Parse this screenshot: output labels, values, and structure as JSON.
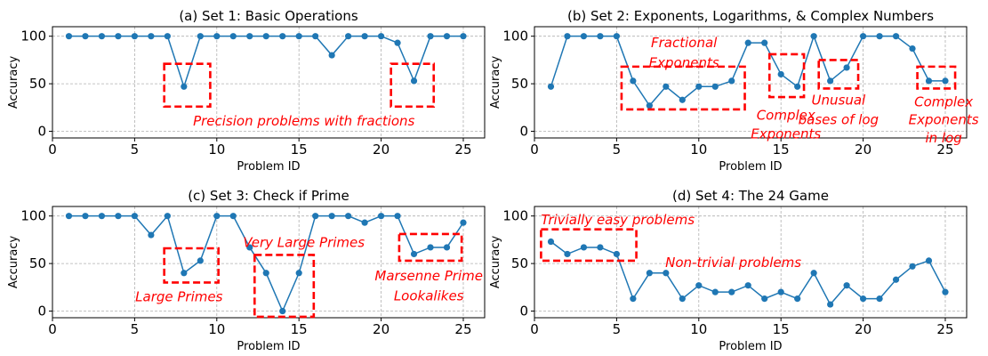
{
  "chart_data": [
    {
      "type": "line",
      "title": "(a) Set 1: Basic Operations",
      "xlabel": "Problem ID",
      "ylabel": "Accuracy",
      "xlim": [
        0,
        26.3
      ],
      "ylim": [
        -7,
        110
      ],
      "xticks": [
        0,
        5,
        10,
        15,
        20,
        25
      ],
      "yticks": [
        0,
        50,
        100
      ],
      "grid": true,
      "color": "#1f77b4",
      "x": [
        1,
        2,
        3,
        4,
        5,
        6,
        7,
        8,
        9,
        10,
        11,
        12,
        13,
        14,
        15,
        16,
        17,
        18,
        19,
        20,
        21,
        22,
        23,
        24,
        25
      ],
      "values": [
        100,
        100,
        100,
        100,
        100,
        100,
        100,
        47,
        100,
        100,
        100,
        100,
        100,
        100,
        100,
        100,
        80,
        100,
        100,
        100,
        93,
        53,
        100,
        100,
        100
      ],
      "highlights": [
        {
          "x": [
            6.8,
            9.6
          ],
          "y": [
            26,
            71
          ]
        },
        {
          "x": [
            20.6,
            23.2
          ],
          "y": [
            26,
            71
          ]
        }
      ],
      "annotations": [
        {
          "lines": [
            "Precision problems with fractions"
          ],
          "x": 15.3,
          "y": 11
        }
      ]
    },
    {
      "type": "line",
      "title": "(b) Set 2: Exponents, Logarithms, & Complex Numbers",
      "xlabel": "Problem ID",
      "ylabel": "Accuracy",
      "xlim": [
        0,
        26.3
      ],
      "ylim": [
        -7,
        110
      ],
      "xticks": [
        0,
        5,
        10,
        15,
        20,
        25
      ],
      "yticks": [
        0,
        50,
        100
      ],
      "grid": true,
      "color": "#1f77b4",
      "x": [
        1,
        2,
        3,
        4,
        5,
        6,
        7,
        8,
        9,
        10,
        11,
        12,
        13,
        14,
        15,
        16,
        17,
        18,
        19,
        20,
        21,
        22,
        23,
        24,
        25
      ],
      "values": [
        47,
        100,
        100,
        100,
        100,
        53,
        27,
        47,
        33,
        47,
        47,
        53,
        93,
        93,
        60,
        47,
        100,
        53,
        67,
        100,
        100,
        100,
        87,
        53,
        53
      ],
      "highlights": [
        {
          "x": [
            5.3,
            12.8
          ],
          "y": [
            23,
            68
          ]
        },
        {
          "x": [
            14.3,
            16.4
          ],
          "y": [
            36,
            81
          ]
        },
        {
          "x": [
            17.3,
            19.7
          ],
          "y": [
            45,
            75
          ]
        },
        {
          "x": [
            23.3,
            25.6
          ],
          "y": [
            45,
            68
          ]
        }
      ],
      "annotations": [
        {
          "lines": [
            "Fractional",
            "Exponents"
          ],
          "x": 9.1,
          "y": [
            93,
            72
          ]
        },
        {
          "lines": [
            "Complex",
            "Exponents"
          ],
          "x": 15.3,
          "y": [
            17,
            -3
          ]
        },
        {
          "lines": [
            "Unusual",
            "bases of log"
          ],
          "x": 18.5,
          "y": [
            33,
            12
          ]
        },
        {
          "lines": [
            "Complex",
            "Exponents",
            "in log"
          ],
          "x": 24.9,
          "y": [
            31,
            12,
            -7
          ]
        }
      ]
    },
    {
      "type": "line",
      "title": "(c) Set 3: Check if Prime",
      "xlabel": "Problem ID",
      "ylabel": "Accuracy",
      "xlim": [
        0,
        26.3
      ],
      "ylim": [
        -7,
        110
      ],
      "xticks": [
        0,
        5,
        10,
        15,
        20,
        25
      ],
      "yticks": [
        0,
        50,
        100
      ],
      "grid": true,
      "color": "#1f77b4",
      "x": [
        1,
        2,
        3,
        4,
        5,
        6,
        7,
        8,
        9,
        10,
        11,
        12,
        13,
        14,
        15,
        16,
        17,
        18,
        19,
        20,
        21,
        22,
        23,
        24,
        25
      ],
      "values": [
        100,
        100,
        100,
        100,
        100,
        80,
        100,
        40,
        53,
        100,
        100,
        67,
        40,
        0,
        40,
        100,
        100,
        100,
        93,
        100,
        100,
        60,
        67,
        67,
        93
      ],
      "highlights": [
        {
          "x": [
            6.8,
            10.1
          ],
          "y": [
            30,
            66
          ]
        },
        {
          "x": [
            12.3,
            15.9
          ],
          "y": [
            -6,
            59
          ]
        },
        {
          "x": [
            21.1,
            24.9
          ],
          "y": [
            53,
            81
          ]
        }
      ],
      "annotations": [
        {
          "lines": [
            "Very Large Primes"
          ],
          "x": 15.3,
          "y": 72
        },
        {
          "lines": [
            "Large Primes"
          ],
          "x": 7.7,
          "y": 15
        },
        {
          "lines": [
            "Marsenne Prime",
            "Lookalikes"
          ],
          "x": 22.9,
          "y": [
            37,
            16
          ]
        }
      ]
    },
    {
      "type": "line",
      "title": "(d) Set 4: The 24 Game",
      "xlabel": "Problem ID",
      "ylabel": "Accuracy",
      "xlim": [
        0,
        26.3
      ],
      "ylim": [
        -7,
        110
      ],
      "xticks": [
        0,
        5,
        10,
        15,
        20,
        25
      ],
      "yticks": [
        0,
        50,
        100
      ],
      "grid": true,
      "color": "#1f77b4",
      "x": [
        1,
        2,
        3,
        4,
        5,
        6,
        7,
        8,
        9,
        10,
        11,
        12,
        13,
        14,
        15,
        16,
        17,
        18,
        19,
        20,
        21,
        22,
        23,
        24,
        25
      ],
      "values": [
        73,
        60,
        67,
        67,
        60,
        13,
        40,
        40,
        13,
        27,
        20,
        20,
        27,
        13,
        20,
        13,
        40,
        7,
        27,
        13,
        13,
        33,
        47,
        53,
        20
      ],
      "highlights": [
        {
          "x": [
            0.4,
            6.2
          ],
          "y": [
            53,
            86
          ]
        }
      ],
      "annotations": [
        {
          "lines": [
            "Trivially easy problems"
          ],
          "x": 0.4,
          "y": 96,
          "anchor": "start"
        },
        {
          "lines": [
            "Non-trivial problems"
          ],
          "x": 12.1,
          "y": 51
        }
      ]
    }
  ]
}
